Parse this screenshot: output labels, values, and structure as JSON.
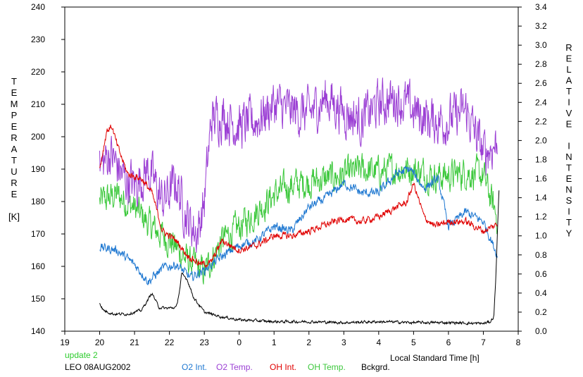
{
  "chart_data": {
    "type": "line",
    "left_axis_label_letters": [
      "T",
      "E",
      "M",
      "P",
      "E",
      "R",
      "A",
      "T",
      "U",
      "R",
      "E"
    ],
    "left_axis_unit": "[K]",
    "right_axis_label_letters": [
      "R",
      "E",
      "L",
      "A",
      "T",
      "I",
      "V",
      "E",
      "",
      "I",
      "N",
      "T",
      "E",
      "N",
      "S",
      "I",
      "T",
      "Y"
    ],
    "xlabel": "Local Standard Time [h]",
    "x_ticks": [
      "19",
      "20",
      "21",
      "22",
      "23",
      "0",
      "1",
      "2",
      "3",
      "4",
      "5",
      "6",
      "7",
      "8"
    ],
    "y_left_ticks": [
      "140",
      "150",
      "160",
      "170",
      "180",
      "190",
      "200",
      "210",
      "220",
      "230",
      "240"
    ],
    "y_right_ticks": [
      "0.0",
      "0.2",
      "0.4",
      "0.6",
      "0.8",
      "1.0",
      "1.2",
      "1.4",
      "1.6",
      "1.8",
      "2.0",
      "2.2",
      "2.4",
      "2.6",
      "2.8",
      "3.0",
      "3.2",
      "3.4"
    ],
    "xlim": [
      19,
      32
    ],
    "ylim_left": [
      140,
      240
    ],
    "ylim_right": [
      0,
      3.4
    ],
    "series": [
      {
        "name": "O2 Int.",
        "axis": "right",
        "color": "#1f78d1",
        "noise": 0.04,
        "x": [
          20.0,
          20.5,
          21.0,
          21.4,
          21.8,
          22.2,
          22.6,
          23.0,
          23.5,
          24.0,
          24.5,
          25.0,
          25.5,
          26.0,
          26.5,
          27.0,
          27.5,
          28.0,
          28.5,
          28.9,
          29.3,
          29.7,
          30.0,
          30.5,
          31.0,
          31.4
        ],
        "values": [
          0.88,
          0.85,
          0.7,
          0.52,
          0.66,
          0.7,
          0.56,
          0.64,
          0.78,
          0.9,
          0.95,
          1.1,
          1.05,
          1.3,
          1.4,
          1.55,
          1.45,
          1.45,
          1.65,
          1.7,
          1.5,
          1.6,
          1.1,
          1.25,
          1.15,
          0.8
        ]
      },
      {
        "name": "O2 Temp.",
        "axis": "left",
        "color": "#9b3fd4",
        "noise": 6,
        "x": [
          20.0,
          20.3,
          20.7,
          21.0,
          21.4,
          21.8,
          22.2,
          22.5,
          22.8,
          23.0,
          23.2,
          23.5,
          24.0,
          24.5,
          25.0,
          25.5,
          26.0,
          26.5,
          27.0,
          27.5,
          28.0,
          28.5,
          29.0,
          29.5,
          30.0,
          30.5,
          31.0,
          31.4
        ],
        "values": [
          190,
          195,
          187,
          185,
          190,
          180,
          186,
          175,
          170,
          180,
          205,
          207,
          203,
          205,
          210,
          208,
          207,
          212,
          208,
          205,
          210,
          212,
          208,
          205,
          205,
          208,
          195,
          198
        ]
      },
      {
        "name": "OH Int.",
        "axis": "right",
        "color": "#e00000",
        "noise": 0.03,
        "x": [
          20.0,
          20.2,
          20.35,
          20.5,
          20.8,
          21.2,
          21.5,
          21.8,
          22.2,
          22.5,
          22.9,
          23.2,
          23.5,
          24.0,
          24.5,
          25.0,
          25.5,
          26.0,
          26.5,
          27.0,
          27.5,
          28.0,
          28.5,
          28.8,
          29.0,
          29.3,
          29.6,
          30.0,
          30.5,
          31.0,
          31.4
        ],
        "values": [
          1.7,
          2.1,
          2.15,
          1.95,
          1.65,
          1.6,
          1.45,
          1.05,
          0.95,
          0.8,
          0.7,
          0.72,
          0.95,
          0.85,
          0.9,
          1.0,
          1.0,
          1.05,
          1.12,
          1.18,
          1.15,
          1.2,
          1.3,
          1.35,
          1.55,
          1.2,
          1.1,
          1.15,
          1.15,
          1.05,
          1.12
        ]
      },
      {
        "name": "OH Temp.",
        "axis": "left",
        "color": "#3cc83c",
        "noise": 4,
        "x": [
          20.0,
          20.5,
          21.0,
          21.5,
          22.0,
          22.5,
          23.0,
          23.5,
          24.0,
          24.5,
          25.0,
          25.5,
          26.0,
          26.5,
          27.0,
          27.5,
          28.0,
          28.5,
          29.0,
          29.5,
          30.0,
          30.5,
          31.0,
          31.4
        ],
        "values": [
          180,
          182,
          178,
          172,
          168,
          162,
          158,
          168,
          172,
          177,
          182,
          185,
          186,
          187,
          188,
          190,
          189,
          190,
          190,
          188,
          188,
          189,
          188,
          175
        ]
      },
      {
        "name": "Bckgrd.",
        "axis": "right",
        "color": "#000000",
        "noise": 0.012,
        "x": [
          20.0,
          20.1,
          20.4,
          20.8,
          21.2,
          21.5,
          21.7,
          21.9,
          22.2,
          22.3,
          22.35,
          22.5,
          22.7,
          23.0,
          23.5,
          24.0,
          25.0,
          26.0,
          27.0,
          28.0,
          29.0,
          30.0,
          31.0,
          31.2,
          31.3,
          31.35,
          31.4,
          31.45
        ],
        "values": [
          0.3,
          0.22,
          0.18,
          0.18,
          0.22,
          0.4,
          0.25,
          0.24,
          0.25,
          0.45,
          0.6,
          0.55,
          0.35,
          0.2,
          0.15,
          0.12,
          0.1,
          0.1,
          0.09,
          0.1,
          0.09,
          0.09,
          0.08,
          0.1,
          0.15,
          0.5,
          1.0,
          1.5
        ]
      }
    ]
  },
  "legend": {
    "update_text": "update 2",
    "update_color": "#2ecc2e",
    "station_text": "LEO 08AUG2002",
    "items": [
      {
        "label": "O2 Int.",
        "color": "#1f78d1"
      },
      {
        "label": "O2 Temp.",
        "color": "#9b3fd4"
      },
      {
        "label": "OH Int.",
        "color": "#e00000"
      },
      {
        "label": "OH Temp.",
        "color": "#3cc83c"
      },
      {
        "label": "Bckgrd.",
        "color": "#000000"
      }
    ]
  }
}
